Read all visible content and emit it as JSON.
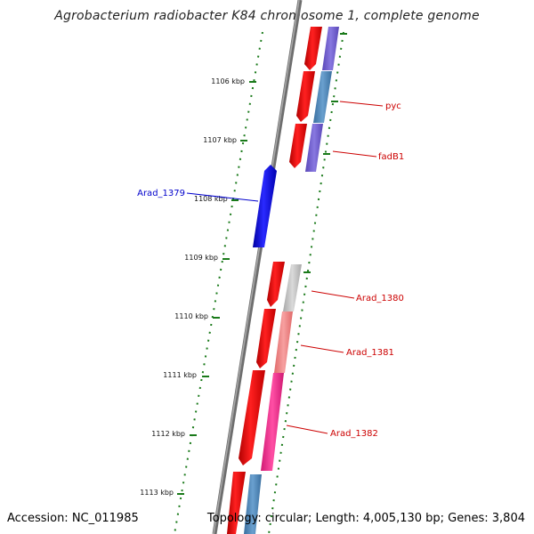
{
  "title": "Agrobacterium radiobacter K84 chromosome 1, complete genome",
  "accession": "Accession: NC_011985",
  "topology": "Topology: circular; Length: 4,005,130 bp; Genes: 3,804",
  "ticks": [
    "1106 kbp",
    "1107 kbp",
    "1108 kbp",
    "1109 kbp",
    "1110 kbp",
    "1111 kbp",
    "1112 kbp",
    "1113 kbp"
  ],
  "gene_labels": [
    {
      "text": "pyc",
      "color": "#cc0000"
    },
    {
      "text": "fadB1",
      "color": "#cc0000"
    },
    {
      "text": "Arad_1379",
      "color": "#0000cc"
    },
    {
      "text": "Arad_1380",
      "color": "#cc0000"
    },
    {
      "text": "Arad_1381",
      "color": "#cc0000"
    },
    {
      "text": "Arad_1382",
      "color": "#cc0000"
    }
  ],
  "colors": {
    "backbone": "#777777",
    "tick": "#1a7a1a",
    "cds_forward": "#ee1111",
    "cds_reverse": "#1111dd",
    "cog_purple": "#7060cc",
    "cog_steelblue": "#4f86b8",
    "cog_gray": "#bdbdbd",
    "cog_salmon": "#f08080",
    "cog_pink": "#ee2d8a"
  }
}
